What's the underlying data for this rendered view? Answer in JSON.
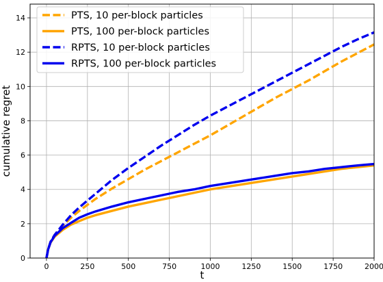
{
  "chart_data": {
    "type": "line",
    "title": "",
    "xlabel": "t",
    "ylabel": "cumulative regret",
    "xlim": [
      -100,
      2000
    ],
    "ylim": [
      0,
      14.8
    ],
    "xticks": [
      0,
      250,
      500,
      750,
      1000,
      1250,
      1500,
      1750,
      2000
    ],
    "yticks": [
      0,
      2,
      4,
      6,
      8,
      10,
      12,
      14
    ],
    "grid": true,
    "legend_position": "top-left",
    "x": [
      0,
      10,
      25,
      50,
      100,
      150,
      200,
      250,
      300,
      400,
      500,
      600,
      700,
      800,
      900,
      1000,
      1100,
      1200,
      1300,
      1400,
      1500,
      1600,
      1700,
      1800,
      1900,
      2000
    ],
    "series": [
      {
        "name": "PTS, 10 per-block particles",
        "color": "#FFA500",
        "style": "dashed",
        "values": [
          0,
          0.5,
          0.95,
          1.35,
          1.9,
          2.35,
          2.75,
          3.1,
          3.45,
          4.05,
          4.6,
          5.15,
          5.65,
          6.15,
          6.65,
          7.15,
          7.7,
          8.25,
          8.8,
          9.35,
          9.85,
          10.35,
          10.9,
          11.45,
          11.95,
          12.45
        ]
      },
      {
        "name": "PTS, 100 per-block particles",
        "color": "#FFA500",
        "style": "solid",
        "values": [
          0,
          0.5,
          0.9,
          1.25,
          1.65,
          1.95,
          2.15,
          2.35,
          2.5,
          2.75,
          3.0,
          3.2,
          3.4,
          3.6,
          3.8,
          4.0,
          4.15,
          4.3,
          4.45,
          4.6,
          4.75,
          4.9,
          5.05,
          5.2,
          5.3,
          5.4
        ]
      },
      {
        "name": "RPTS, 10 per-block particles",
        "color": "#0000EE",
        "style": "dashed",
        "values": [
          0,
          0.5,
          0.95,
          1.35,
          1.95,
          2.5,
          2.95,
          3.35,
          3.75,
          4.55,
          5.25,
          5.9,
          6.55,
          7.15,
          7.75,
          8.3,
          8.8,
          9.3,
          9.8,
          10.3,
          10.8,
          11.3,
          11.8,
          12.3,
          12.75,
          13.15
        ]
      },
      {
        "name": "RPTS, 100 per-block particles",
        "color": "#0000EE",
        "style": "solid",
        "values": [
          0,
          0.5,
          0.92,
          1.3,
          1.75,
          2.05,
          2.35,
          2.55,
          2.72,
          3.0,
          3.25,
          3.45,
          3.65,
          3.85,
          4.0,
          4.2,
          4.35,
          4.5,
          4.65,
          4.8,
          4.95,
          5.05,
          5.2,
          5.3,
          5.4,
          5.48
        ]
      }
    ]
  }
}
